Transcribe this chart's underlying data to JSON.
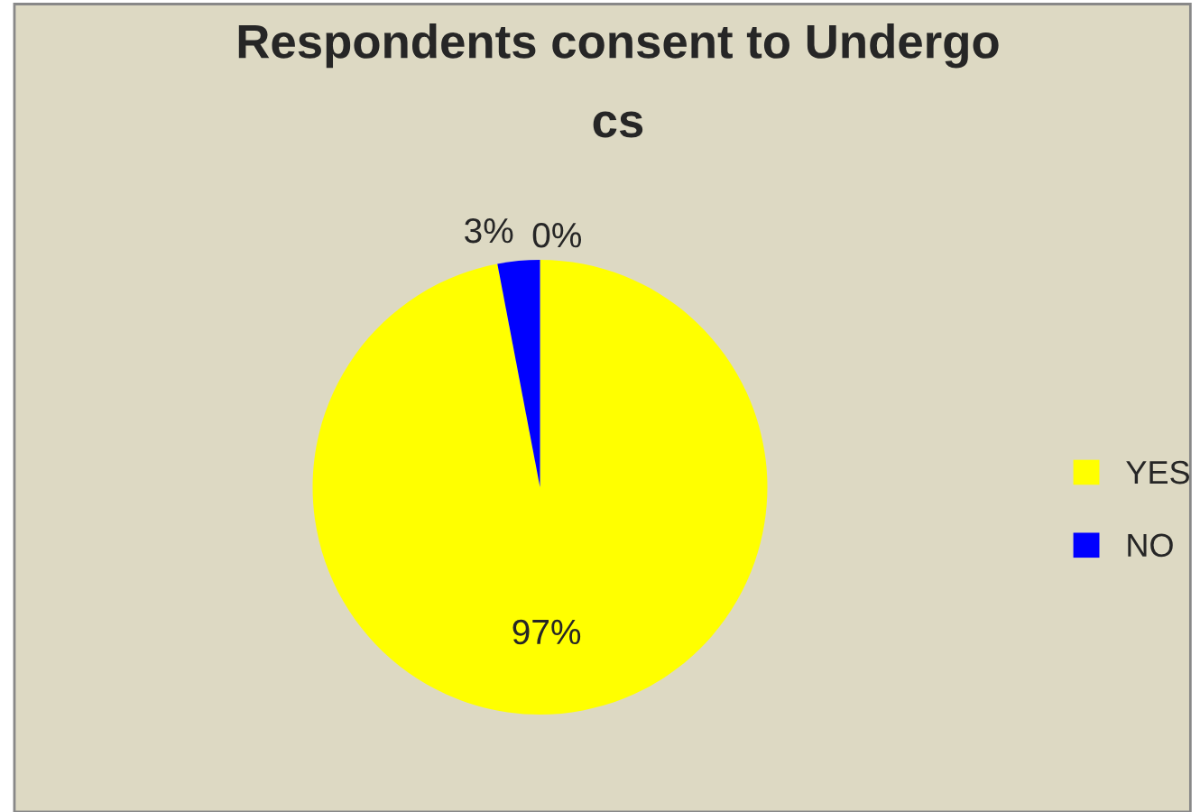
{
  "chart_data": {
    "type": "pie",
    "title": "Respondents consent to Undergo\ncs",
    "categories": [
      "YES",
      "NO"
    ],
    "values": [
      97,
      3
    ],
    "colors": [
      "#ffff00",
      "#0000ff"
    ],
    "value_labels": [
      "97%",
      "3%"
    ],
    "annotations": [
      "0%"
    ],
    "legend": "right"
  }
}
